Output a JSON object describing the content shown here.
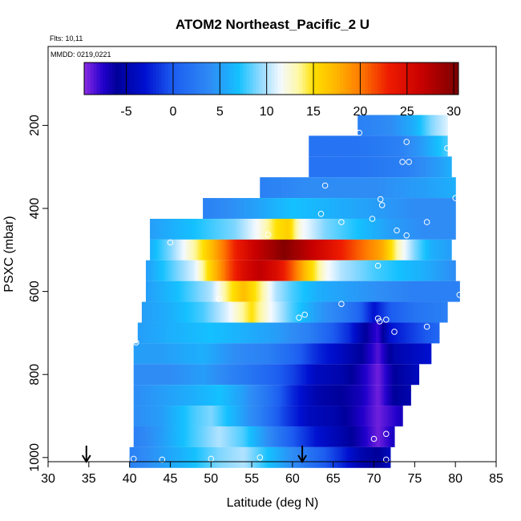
{
  "chart_data": {
    "type": "heatmap",
    "title": "ATOM2 Northeast_Pacific_2 U",
    "flights_label": "Flts: 10,11",
    "dates_label": "MMDD: 0219,0221",
    "xlabel": "Latitude (deg N)",
    "ylabel": "PSXC (mbar)",
    "xlim": [
      30,
      85
    ],
    "ylim": [
      1010,
      10
    ],
    "x_ticks": [
      30,
      35,
      40,
      45,
      50,
      55,
      60,
      65,
      70,
      75,
      80,
      85
    ],
    "y_ticks": [
      200,
      400,
      600,
      800,
      1000
    ],
    "colorbar": {
      "ticks": [
        -5,
        0,
        5,
        10,
        15,
        20,
        25,
        30
      ],
      "range": [
        -9.5,
        30.5
      ],
      "stops": [
        {
          "v": -9.5,
          "c": "#8a2be2"
        },
        {
          "v": -7.5,
          "c": "#2200cc"
        },
        {
          "v": -6,
          "c": "#00009a"
        },
        {
          "v": -3,
          "c": "#0010d0"
        },
        {
          "v": 0,
          "c": "#1c5cf0"
        },
        {
          "v": 4,
          "c": "#2f8cf5"
        },
        {
          "v": 7,
          "c": "#14c1ff"
        },
        {
          "v": 9.5,
          "c": "#9adcff"
        },
        {
          "v": 11.5,
          "c": "#f4f9ff"
        },
        {
          "v": 13.5,
          "c": "#fff8a0"
        },
        {
          "v": 15,
          "c": "#ffe000"
        },
        {
          "v": 17.5,
          "c": "#ffb400"
        },
        {
          "v": 20,
          "c": "#ff7a00"
        },
        {
          "v": 23,
          "c": "#ee1c00"
        },
        {
          "v": 26.5,
          "c": "#c80000"
        },
        {
          "v": 30.5,
          "c": "#7a0000"
        }
      ]
    },
    "layers": [
      {
        "p": 200,
        "lat0": 68,
        "lat1": 79,
        "wind": [
          [
            68,
            3
          ],
          [
            72,
            4
          ],
          [
            75,
            6
          ],
          [
            77,
            9
          ],
          [
            79,
            11
          ]
        ]
      },
      {
        "p": 250,
        "lat0": 62,
        "lat1": 79,
        "wind": [
          [
            62,
            2
          ],
          [
            68,
            2
          ],
          [
            73,
            3
          ],
          [
            76,
            5
          ],
          [
            79,
            8
          ]
        ]
      },
      {
        "p": 300,
        "lat0": 62,
        "lat1": 79.5,
        "wind": [
          [
            62,
            2
          ],
          [
            68,
            2
          ],
          [
            74,
            3
          ],
          [
            78,
            5
          ],
          [
            79.5,
            6
          ]
        ]
      },
      {
        "p": 350,
        "lat0": 56,
        "lat1": 80,
        "wind": [
          [
            56,
            3
          ],
          [
            62,
            4
          ],
          [
            70,
            4
          ],
          [
            76,
            5
          ],
          [
            80,
            6
          ]
        ]
      },
      {
        "p": 400,
        "lat0": 49,
        "lat1": 80,
        "wind": [
          [
            49,
            3
          ],
          [
            55,
            5
          ],
          [
            60,
            7
          ],
          [
            65,
            6
          ],
          [
            70,
            5
          ],
          [
            75,
            4
          ],
          [
            80,
            4
          ]
        ]
      },
      {
        "p": 450,
        "lat0": 42.5,
        "lat1": 80,
        "wind": [
          [
            42.5,
            5
          ],
          [
            48,
            7
          ],
          [
            53,
            9
          ],
          [
            56,
            12
          ],
          [
            58,
            15
          ],
          [
            59.5,
            16
          ],
          [
            61,
            12
          ],
          [
            64,
            9
          ],
          [
            68,
            7
          ],
          [
            72,
            5
          ],
          [
            76,
            4
          ],
          [
            80,
            4
          ]
        ]
      },
      {
        "p": 500,
        "lat0": 42.5,
        "lat1": 79.5,
        "wind": [
          [
            42.5,
            6
          ],
          [
            45,
            9
          ],
          [
            47,
            12
          ],
          [
            49,
            15
          ],
          [
            51,
            19
          ],
          [
            53,
            23
          ],
          [
            55,
            26
          ],
          [
            57,
            28
          ],
          [
            59,
            30
          ],
          [
            61,
            28
          ],
          [
            63,
            26
          ],
          [
            65,
            24
          ],
          [
            67,
            22
          ],
          [
            69,
            20
          ],
          [
            71,
            18
          ],
          [
            73,
            13
          ],
          [
            75,
            9
          ],
          [
            77,
            6
          ],
          [
            79.5,
            5
          ]
        ]
      },
      {
        "p": 550,
        "lat0": 42,
        "lat1": 80,
        "wind": [
          [
            42,
            5
          ],
          [
            45,
            8
          ],
          [
            48,
            11
          ],
          [
            50,
            16
          ],
          [
            52,
            21
          ],
          [
            54,
            25
          ],
          [
            56,
            27
          ],
          [
            58,
            25
          ],
          [
            60,
            21
          ],
          [
            62,
            16
          ],
          [
            64,
            12
          ],
          [
            66,
            10
          ],
          [
            68,
            9
          ],
          [
            70,
            8
          ],
          [
            73,
            7
          ],
          [
            76,
            6
          ],
          [
            80,
            4
          ]
        ]
      },
      {
        "p": 600,
        "lat0": 42,
        "lat1": 80.5,
        "wind": [
          [
            42,
            5
          ],
          [
            46,
            7
          ],
          [
            50,
            10
          ],
          [
            52,
            14
          ],
          [
            54,
            17
          ],
          [
            56,
            14
          ],
          [
            58,
            10
          ],
          [
            60,
            8
          ],
          [
            63,
            6
          ],
          [
            67,
            5
          ],
          [
            71,
            4
          ],
          [
            75,
            3
          ],
          [
            80.5,
            3
          ]
        ]
      },
      {
        "p": 650,
        "lat0": 41.5,
        "lat1": 79,
        "wind": [
          [
            41.5,
            5
          ],
          [
            45,
            6
          ],
          [
            49,
            8
          ],
          [
            52,
            11
          ],
          [
            55,
            15
          ],
          [
            57,
            12
          ],
          [
            60,
            8
          ],
          [
            63,
            5
          ],
          [
            66,
            3
          ],
          [
            68,
            1
          ],
          [
            70,
            -3
          ],
          [
            72,
            0
          ],
          [
            75,
            2
          ],
          [
            79,
            3
          ]
        ]
      },
      {
        "p": 700,
        "lat0": 41,
        "lat1": 78,
        "wind": [
          [
            41,
            5
          ],
          [
            45,
            6
          ],
          [
            50,
            7
          ],
          [
            54,
            6
          ],
          [
            58,
            5
          ],
          [
            62,
            3
          ],
          [
            65,
            0
          ],
          [
            67,
            -2
          ],
          [
            69,
            -6
          ],
          [
            70.5,
            -8
          ],
          [
            72,
            -3
          ],
          [
            75,
            -1
          ],
          [
            78,
            1
          ]
        ]
      },
      {
        "p": 750,
        "lat0": 40.5,
        "lat1": 77,
        "wind": [
          [
            40.5,
            5
          ],
          [
            44,
            5
          ],
          [
            49,
            6
          ],
          [
            53,
            4
          ],
          [
            57,
            3
          ],
          [
            60,
            1
          ],
          [
            63,
            -2
          ],
          [
            66,
            -4
          ],
          [
            68.5,
            -6
          ],
          [
            70.5,
            -8.5
          ],
          [
            72.5,
            -5
          ],
          [
            77,
            -3
          ]
        ]
      },
      {
        "p": 800,
        "lat0": 40.5,
        "lat1": 75.5,
        "wind": [
          [
            40.5,
            4
          ],
          [
            45,
            4
          ],
          [
            49,
            5
          ],
          [
            53,
            3
          ],
          [
            57,
            1
          ],
          [
            60,
            -1
          ],
          [
            63,
            -4
          ],
          [
            66,
            -5
          ],
          [
            68.5,
            -7
          ],
          [
            70.5,
            -9
          ],
          [
            72.5,
            -6
          ],
          [
            75.5,
            -4
          ]
        ]
      },
      {
        "p": 850,
        "lat0": 40.5,
        "lat1": 74.5,
        "wind": [
          [
            40.5,
            4
          ],
          [
            44,
            5
          ],
          [
            48,
            6
          ],
          [
            51,
            7
          ],
          [
            54,
            5
          ],
          [
            57,
            2
          ],
          [
            60,
            -2
          ],
          [
            63,
            -5
          ],
          [
            66,
            -6
          ],
          [
            68.5,
            -7
          ],
          [
            70.5,
            -9
          ],
          [
            72.5,
            -6
          ],
          [
            74.5,
            -5
          ]
        ]
      },
      {
        "p": 900,
        "lat0": 40.5,
        "lat1": 73.5,
        "wind": [
          [
            40.5,
            4
          ],
          [
            44,
            5
          ],
          [
            48,
            8
          ],
          [
            50,
            9
          ],
          [
            53,
            6
          ],
          [
            56,
            3
          ],
          [
            59,
            -1
          ],
          [
            62,
            -4
          ],
          [
            65,
            -5
          ],
          [
            68,
            -7
          ],
          [
            70.5,
            -9
          ],
          [
            73.5,
            -7
          ]
        ]
      },
      {
        "p": 950,
        "lat0": 40.5,
        "lat1": 72.5,
        "wind": [
          [
            40.5,
            3
          ],
          [
            44,
            5
          ],
          [
            48,
            8
          ],
          [
            51,
            10
          ],
          [
            54,
            8
          ],
          [
            57,
            4
          ],
          [
            60,
            0
          ],
          [
            63,
            -3
          ],
          [
            66,
            -5
          ],
          [
            68.5,
            -7
          ],
          [
            70.5,
            -9
          ],
          [
            72.5,
            -7
          ]
        ]
      },
      {
        "p": 1000,
        "lat0": 40,
        "lat1": 72,
        "wind": [
          [
            40,
            3
          ],
          [
            44,
            5
          ],
          [
            48,
            7
          ],
          [
            51,
            9
          ],
          [
            54,
            10
          ],
          [
            57,
            7
          ],
          [
            60,
            4
          ],
          [
            63,
            1
          ],
          [
            66,
            -2
          ],
          [
            68.5,
            -5
          ],
          [
            70.5,
            -6
          ],
          [
            72,
            -4
          ]
        ]
      }
    ],
    "sample_points": [
      [
        68.2,
        218
      ],
      [
        74,
        240
      ],
      [
        79,
        255
      ],
      [
        73.5,
        288
      ],
      [
        74.3,
        288
      ],
      [
        64,
        345
      ],
      [
        80,
        375
      ],
      [
        70.8,
        378
      ],
      [
        71,
        392
      ],
      [
        63.5,
        413
      ],
      [
        69.8,
        425
      ],
      [
        66,
        433
      ],
      [
        76.5,
        433
      ],
      [
        43,
        418
      ],
      [
        72.8,
        453
      ],
      [
        57,
        463
      ],
      [
        74,
        465
      ],
      [
        45,
        482
      ],
      [
        70.5,
        538
      ],
      [
        51,
        618
      ],
      [
        80.5,
        608
      ],
      [
        66,
        630
      ],
      [
        61.5,
        656
      ],
      [
        60.8,
        663
      ],
      [
        70.5,
        665
      ],
      [
        71.5,
        668
      ],
      [
        70.7,
        672
      ],
      [
        76.5,
        685
      ],
      [
        72.5,
        697
      ],
      [
        40.8,
        723
      ],
      [
        71.5,
        943
      ],
      [
        70,
        955
      ],
      [
        40.5,
        1003
      ],
      [
        44,
        1005
      ],
      [
        50,
        1003
      ],
      [
        56,
        1000
      ],
      [
        71.5,
        1005
      ]
    ],
    "arrows_lat": [
      34.7,
      61.2
    ]
  }
}
